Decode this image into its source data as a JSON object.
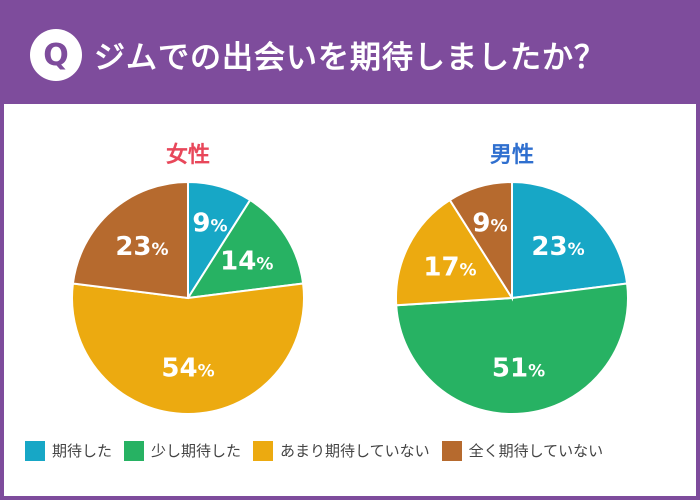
{
  "header": {
    "badge": "Q",
    "title": "ジムでの出会いを期待しましたか？",
    "background": "#7e4c9c"
  },
  "chart_data": [
    {
      "type": "pie",
      "title": "女性",
      "title_color": "#e8475a",
      "categories": [
        "期待した",
        "少し期待した",
        "あまり期待していない",
        "全く期待していない"
      ],
      "values": [
        9,
        14,
        54,
        23
      ],
      "unit": "%"
    },
    {
      "type": "pie",
      "title": "男性",
      "title_color": "#2f6fcf",
      "categories": [
        "期待した",
        "少し期待した",
        "あまり期待していない",
        "全く期待していない"
      ],
      "values": [
        23,
        51,
        17,
        9
      ],
      "unit": "%"
    }
  ],
  "legend": [
    {
      "label": "期待した",
      "color": "#17a7c6"
    },
    {
      "label": "少し期待した",
      "color": "#27b263"
    },
    {
      "label": "あまり期待していない",
      "color": "#ecaa10"
    },
    {
      "label": "全く期待していない",
      "color": "#b66a2e"
    }
  ]
}
